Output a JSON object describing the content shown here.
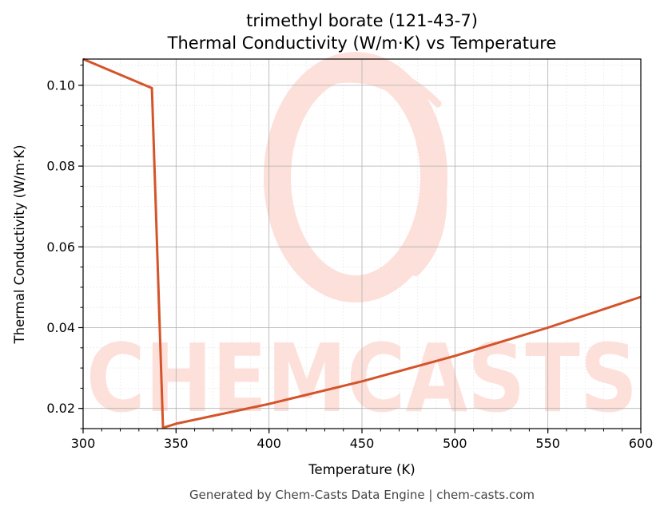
{
  "chart_data": {
    "type": "line",
    "title": "trimethyl borate (121-43-7)",
    "subtitle": "Thermal Conductivity (W/m·K) vs Temperature",
    "xlabel": "Temperature (K)",
    "ylabel": "Thermal Conductivity (W/m·K)",
    "xlim": [
      300,
      600
    ],
    "ylim": [
      0.015,
      0.1065
    ],
    "x_ticks": [
      300,
      350,
      400,
      450,
      500,
      550,
      600
    ],
    "y_ticks": [
      0.02,
      0.04,
      0.06,
      0.08,
      0.1
    ],
    "x_tick_labels": [
      "300",
      "350",
      "400",
      "450",
      "500",
      "550",
      "600"
    ],
    "y_tick_labels": [
      "0.02",
      "0.04",
      "0.06",
      "0.08",
      "0.10"
    ],
    "grid": true,
    "line_color": "#d4542a",
    "series": [
      {
        "x": [
          300,
          337,
          343,
          350,
          400,
          450,
          500,
          550,
          600
        ],
        "y": [
          0.1065,
          0.0993,
          0.0152,
          0.0162,
          0.0211,
          0.0267,
          0.033,
          0.04,
          0.0476
        ]
      }
    ]
  },
  "watermark": {
    "text": "CHEMCASTS",
    "color": "#fde0da"
  },
  "footer": "Generated by Chem-Casts Data Engine | chem-casts.com"
}
